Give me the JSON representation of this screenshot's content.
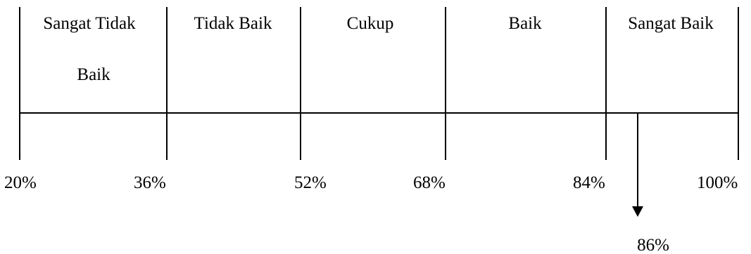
{
  "scale": {
    "categories": [
      {
        "name_lines": [
          "Sangat Tidak",
          "Baik"
        ]
      },
      {
        "name_lines": [
          "Tidak Baik"
        ]
      },
      {
        "name_lines": [
          "Cukup"
        ]
      },
      {
        "name_lines": [
          "Baik"
        ]
      },
      {
        "name_lines": [
          "Sangat Baik"
        ]
      }
    ],
    "ticks": [
      "20%",
      "36%",
      "52%",
      "68%",
      "84%",
      "100%"
    ],
    "marker": {
      "value": 86,
      "label": "86%"
    },
    "colors": {
      "line": "#000000",
      "text": "#000000"
    }
  }
}
